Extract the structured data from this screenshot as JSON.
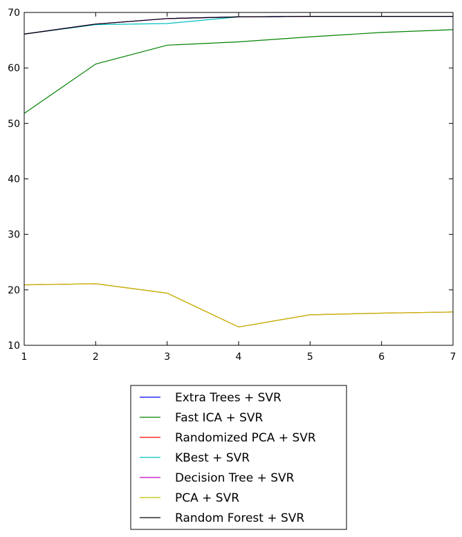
{
  "chart_data": {
    "type": "line",
    "title": "",
    "xlabel": "",
    "ylabel": "",
    "xlim": [
      1,
      7
    ],
    "ylim": [
      10,
      70
    ],
    "x_ticks": [
      1,
      2,
      3,
      4,
      5,
      6,
      7
    ],
    "y_ticks": [
      10,
      20,
      30,
      40,
      50,
      60,
      70
    ],
    "grid": false,
    "legend_placement": "below",
    "x": [
      1,
      2,
      3,
      4,
      5,
      6,
      7
    ],
    "series": [
      {
        "name": "Extra Trees + SVR",
        "color": "#0000ff",
        "values": [
          66.1,
          67.9,
          68.9,
          69.2,
          69.3,
          69.3,
          69.3
        ]
      },
      {
        "name": "Fast ICA + SVR",
        "color": "#008000",
        "values": [
          51.8,
          60.7,
          64.1,
          64.7,
          65.6,
          66.4,
          66.9
        ]
      },
      {
        "name": "Randomized PCA + SVR",
        "color": "#ff0000",
        "values": [
          20.9,
          21.1,
          19.4,
          13.3,
          15.5,
          15.8,
          16.0
        ]
      },
      {
        "name": "KBest + SVR",
        "color": "#00bfbf",
        "values": [
          66.1,
          67.8,
          68.0,
          69.2,
          69.3,
          69.3,
          69.3
        ]
      },
      {
        "name": "Decision Tree + SVR",
        "color": "#bf00bf",
        "values": [
          66.1,
          67.9,
          68.9,
          69.2,
          69.3,
          69.3,
          69.3
        ]
      },
      {
        "name": "PCA + SVR",
        "color": "#bfbf00",
        "values": [
          20.9,
          21.1,
          19.4,
          13.3,
          15.5,
          15.8,
          16.0
        ]
      },
      {
        "name": "Random Forest + SVR",
        "color": "#000000",
        "values": [
          66.1,
          67.9,
          68.9,
          69.2,
          69.3,
          69.3,
          69.3
        ]
      }
    ]
  }
}
